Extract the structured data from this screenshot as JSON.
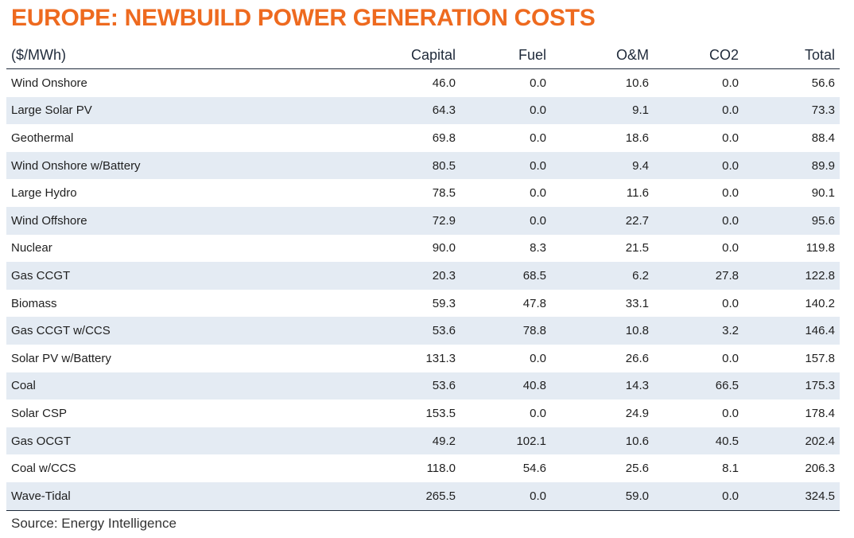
{
  "title": "EUROPE: NEWBUILD POWER GENERATION COSTS",
  "source": "Source: Energy Intelligence",
  "colors": {
    "title": "#ee6a1f",
    "stripe": "#e4ebf3",
    "rule": "#1f2a3a"
  },
  "chart_data": {
    "type": "table",
    "title": "EUROPE: NEWBUILD POWER GENERATION COSTS",
    "columns": [
      "($/MWh)",
      "Capital",
      "Fuel",
      "O&M",
      "CO2",
      "Total"
    ],
    "rows": [
      [
        "Wind Onshore",
        "46.0",
        "0.0",
        "10.6",
        "0.0",
        "56.6"
      ],
      [
        "Large Solar PV",
        "64.3",
        "0.0",
        "9.1",
        "0.0",
        "73.3"
      ],
      [
        "Geothermal",
        "69.8",
        "0.0",
        "18.6",
        "0.0",
        "88.4"
      ],
      [
        "Wind Onshore w/Battery",
        "80.5",
        "0.0",
        "9.4",
        "0.0",
        "89.9"
      ],
      [
        "Large Hydro",
        "78.5",
        "0.0",
        "11.6",
        "0.0",
        "90.1"
      ],
      [
        "Wind Offshore",
        "72.9",
        "0.0",
        "22.7",
        "0.0",
        "95.6"
      ],
      [
        "Nuclear",
        "90.0",
        "8.3",
        "21.5",
        "0.0",
        "119.8"
      ],
      [
        "Gas CCGT",
        "20.3",
        "68.5",
        "6.2",
        "27.8",
        "122.8"
      ],
      [
        "Biomass",
        "59.3",
        "47.8",
        "33.1",
        "0.0",
        "140.2"
      ],
      [
        "Gas CCGT w/CCS",
        "53.6",
        "78.8",
        "10.8",
        "3.2",
        "146.4"
      ],
      [
        "Solar PV w/Battery",
        "131.3",
        "0.0",
        "26.6",
        "0.0",
        "157.8"
      ],
      [
        "Coal",
        "53.6",
        "40.8",
        "14.3",
        "66.5",
        "175.3"
      ],
      [
        "Solar CSP",
        "153.5",
        "0.0",
        "24.9",
        "0.0",
        "178.4"
      ],
      [
        "Gas OCGT",
        "49.2",
        "102.1",
        "10.6",
        "40.5",
        "202.4"
      ],
      [
        "Coal w/CCS",
        "118.0",
        "54.6",
        "25.6",
        "8.1",
        "206.3"
      ],
      [
        "Wave-Tidal",
        "265.5",
        "0.0",
        "59.0",
        "0.0",
        "324.5"
      ]
    ]
  }
}
